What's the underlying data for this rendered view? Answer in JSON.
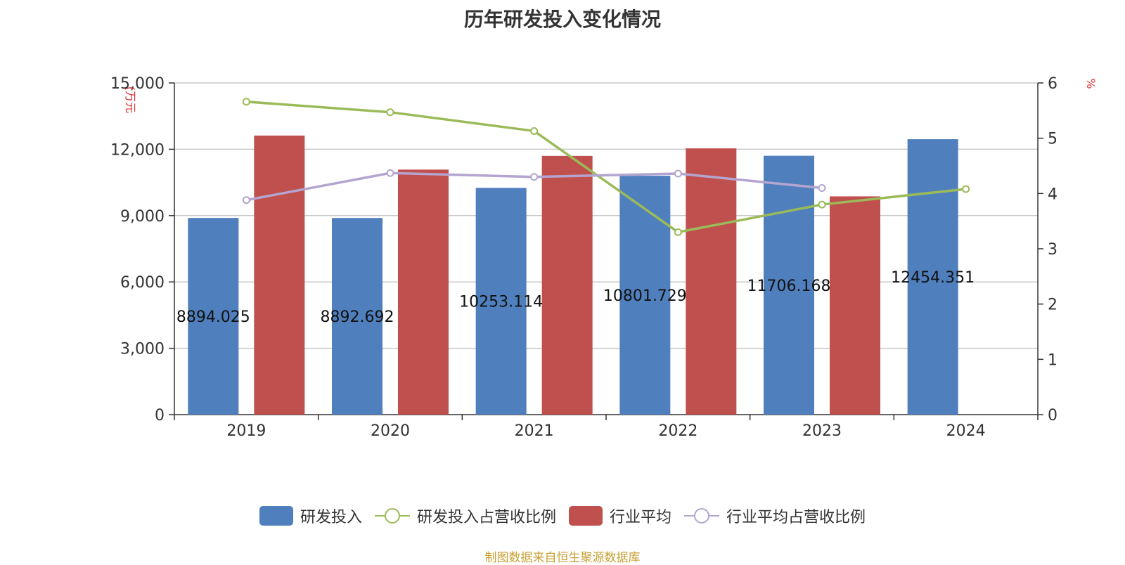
{
  "chart_data": {
    "type": "bar",
    "title": "历年研发投入变化情况",
    "categories": [
      "2019",
      "2020",
      "2021",
      "2022",
      "2023",
      "2024"
    ],
    "y_left": {
      "unit_label": "(万元",
      "ylim": [
        0,
        15000
      ],
      "ticks": [
        "0",
        "3,000",
        "6,000",
        "9,000",
        "12,000",
        "15,000"
      ],
      "tick_values": [
        0,
        3000,
        6000,
        9000,
        12000,
        15000
      ]
    },
    "y_right": {
      "unit_label": "%",
      "ylim": [
        0,
        6
      ],
      "ticks": [
        "0",
        "1",
        "2",
        "3",
        "4",
        "5",
        "6"
      ],
      "tick_values": [
        0,
        1,
        2,
        3,
        4,
        5,
        6
      ]
    },
    "grid": true,
    "legend_position": "bottom",
    "series": [
      {
        "name": "研发投入",
        "type": "bar",
        "axis": "left",
        "color": "#4F7FBD",
        "values": [
          8894.025,
          8892.692,
          10253.114,
          10801.729,
          11706.168,
          12454.351
        ],
        "labels": [
          "8894.025",
          "8892.692",
          "10253.114",
          "10801.729",
          "11706.168",
          "12454.351"
        ]
      },
      {
        "name": "研发投入占营收比例",
        "type": "line",
        "axis": "right",
        "color": "#9BBB59",
        "values": [
          5.66,
          5.47,
          5.13,
          3.3,
          3.8,
          4.08
        ]
      },
      {
        "name": "行业平均",
        "type": "bar",
        "axis": "left",
        "color": "#C0504D",
        "values": [
          12620,
          11080,
          11700,
          12040,
          9870,
          null
        ]
      },
      {
        "name": "行业平均占营收比例",
        "type": "line",
        "axis": "right",
        "color": "#B3A5CF",
        "values": [
          3.88,
          4.37,
          4.3,
          4.36,
          4.1,
          null
        ]
      }
    ]
  },
  "source_note": "制图数据来自恒生聚源数据库"
}
